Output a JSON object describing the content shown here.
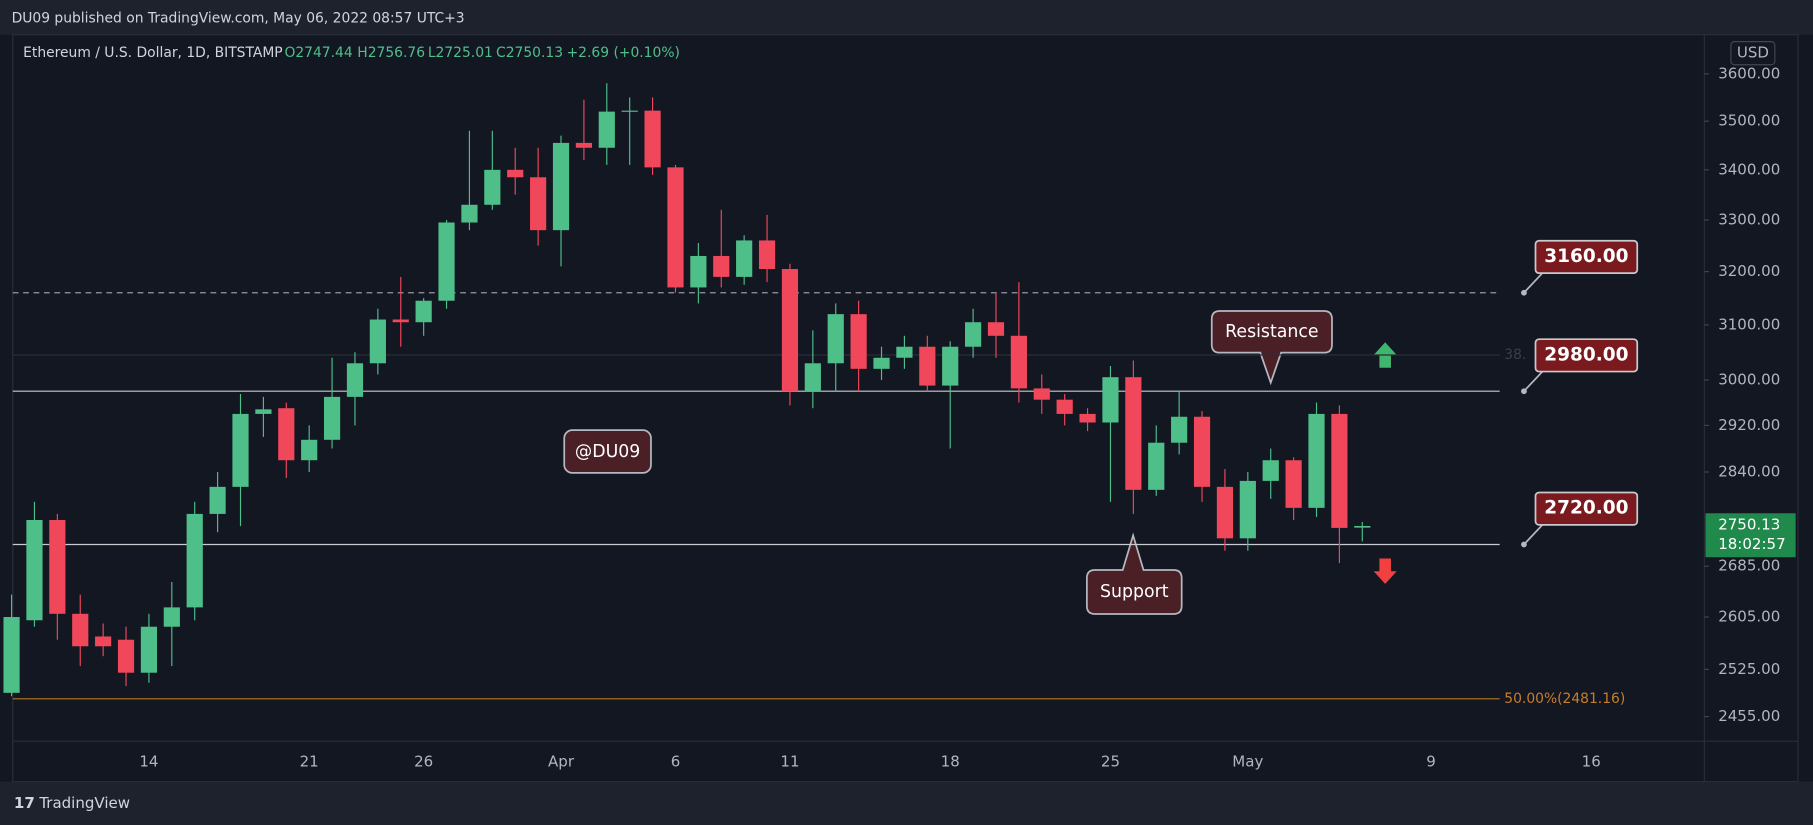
{
  "chart_data": {
    "type": "candlestick",
    "publisher": "DU09 published on TradingView.com, May 06, 2022 08:57 UTC+3",
    "legend": {
      "symbol": "Ethereum / U.S. Dollar, 1D, BITSTAMP",
      "open": "O2747.44",
      "high": "H2756.76",
      "low": "L2725.01",
      "close": "C2750.13",
      "change": "+2.69 (+0.10%)"
    },
    "currency": "USD",
    "brand": "TradingView",
    "watermark": "@DU09",
    "categories": [
      null,
      null,
      null,
      null,
      null,
      null,
      "14",
      null,
      null,
      null,
      null,
      null,
      null,
      "21",
      null,
      null,
      null,
      null,
      "26",
      null,
      null,
      null,
      null,
      null,
      "Apr",
      null,
      null,
      null,
      null,
      "6",
      null,
      null,
      null,
      null,
      "11",
      null,
      null,
      null,
      null,
      null,
      null,
      "18",
      null,
      null,
      null,
      null,
      null,
      null,
      "25",
      null,
      null,
      null,
      null,
      null,
      "May",
      null,
      null,
      null,
      null,
      null,
      null,
      null,
      "9",
      null,
      null,
      null,
      null,
      null,
      null,
      "16",
      null,
      null,
      null,
      null
    ],
    "open": [
      2490,
      2600,
      2760,
      2610,
      2575,
      2570,
      2520,
      2590,
      2620,
      2770,
      2815,
      2940,
      2950,
      2860,
      2895,
      2970,
      3030,
      3110,
      3105,
      3145,
      3295,
      3330,
      3400,
      3385,
      3280,
      3455,
      3445,
      3520,
      3522,
      3405,
      3170,
      3230,
      3190,
      3260,
      3205,
      2980,
      3030,
      3120,
      3020,
      3040,
      3060,
      2990,
      3060,
      3105,
      3080,
      2985,
      2965,
      2940,
      2925,
      3005,
      2810,
      2890,
      2935,
      2815,
      2730,
      2825,
      2860,
      2780,
      2940,
      2747.44,
      null,
      null,
      null,
      null,
      null,
      null,
      null,
      null,
      null,
      null,
      null,
      null,
      null,
      null
    ],
    "high": [
      2640,
      2790,
      2770,
      2640,
      2595,
      2590,
      2610,
      2660,
      2790,
      2840,
      2975,
      2970,
      2960,
      2920,
      3040,
      3050,
      3130,
      3190,
      3150,
      3300,
      3480,
      3480,
      3445,
      3445,
      3470,
      3545,
      3580,
      3550,
      3550,
      3410,
      3255,
      3320,
      3270,
      3310,
      3215,
      3090,
      3140,
      3145,
      3060,
      3080,
      3080,
      3070,
      3130,
      3160,
      3180,
      3010,
      2975,
      2950,
      3025,
      3035,
      2920,
      2980,
      2945,
      2845,
      2840,
      2880,
      2865,
      2960,
      2955,
      2756.76,
      null,
      null,
      null,
      null,
      null,
      null,
      null,
      null,
      null,
      null,
      null,
      null,
      null,
      null
    ],
    "low": [
      2485,
      2590,
      2570,
      2530,
      2545,
      2500,
      2505,
      2530,
      2600,
      2740,
      2750,
      2900,
      2830,
      2840,
      2880,
      2920,
      3010,
      3060,
      3080,
      3130,
      3280,
      3320,
      3350,
      3250,
      3210,
      3420,
      3410,
      3410,
      3390,
      3160,
      3140,
      3170,
      3175,
      3180,
      2955,
      2950,
      2980,
      2980,
      3000,
      3020,
      2980,
      2880,
      3040,
      3040,
      2960,
      2940,
      2920,
      2910,
      2790,
      2770,
      2800,
      2870,
      2790,
      2710,
      2710,
      2795,
      2760,
      2765,
      2690,
      2725.01,
      null,
      null,
      null,
      null,
      null,
      null,
      null,
      null,
      null,
      null,
      null,
      null,
      null,
      null
    ],
    "close": [
      2605,
      2760,
      2610,
      2560,
      2560,
      2520,
      2590,
      2620,
      2770,
      2815,
      2940,
      2948,
      2860,
      2895,
      2970,
      3030,
      3110,
      3105,
      3145,
      3295,
      3330,
      3400,
      3385,
      3280,
      3455,
      3445,
      3520,
      3522,
      3405,
      3170,
      3230,
      3190,
      3260,
      3205,
      2980,
      3030,
      3120,
      3020,
      3040,
      3060,
      2990,
      3060,
      3105,
      3080,
      2985,
      2965,
      2940,
      2925,
      3005,
      2810,
      2890,
      2935,
      2815,
      2730,
      2825,
      2860,
      2780,
      2940,
      2747,
      2750.13,
      null,
      null,
      null,
      null,
      null,
      null,
      null,
      null,
      null,
      null,
      null,
      null,
      null,
      null
    ],
    "up_color": "#4fbf8a",
    "down_color": "#f0475a",
    "log_scale": true,
    "grid": false,
    "ylim": [
      2421,
      3685
    ],
    "yticks": [
      {
        "value": 3600,
        "label": "3600.00"
      },
      {
        "value": 3500,
        "label": "3500.00"
      },
      {
        "value": 3400,
        "label": "3400.00"
      },
      {
        "value": 3300,
        "label": "3300.00"
      },
      {
        "value": 3200,
        "label": "3200.00"
      },
      {
        "value": 3100,
        "label": "3100.00"
      },
      {
        "value": 3000,
        "label": "3000.00"
      },
      {
        "value": 2920,
        "label": "2920.00"
      },
      {
        "value": 2840,
        "label": "2840.00"
      },
      {
        "value": 2685,
        "label": "2685.00"
      },
      {
        "value": 2605,
        "label": "2605.00"
      },
      {
        "value": 2525,
        "label": "2525.00"
      },
      {
        "value": 2455,
        "label": "2455.00"
      }
    ],
    "levels": [
      {
        "value": 3160,
        "label": "3160.00",
        "dashed": true
      },
      {
        "value": 2980,
        "label": "2980.00",
        "dashed": false
      },
      {
        "value": 2720,
        "label": "2720.00",
        "dashed": false
      }
    ],
    "fib_levels": [
      {
        "value": 3045,
        "label": "38."
      },
      {
        "value": 2481.16,
        "label": "50.00%(2481.16)"
      }
    ],
    "last_price": {
      "value": 2750.13,
      "label": "2750.13",
      "countdown": "18:02:57"
    },
    "annotations": {
      "resistance": "Resistance",
      "support": "Support"
    }
  }
}
